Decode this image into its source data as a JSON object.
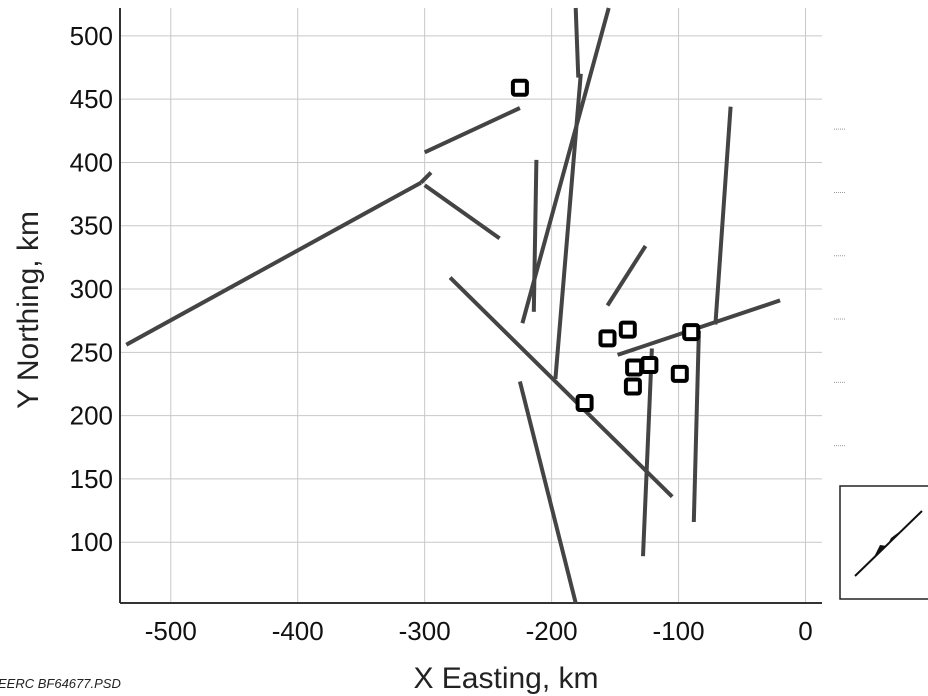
{
  "chart_data": {
    "type": "line",
    "title": "",
    "xlabel": "X Easting, km",
    "ylabel": "Y Northing, km",
    "xlim": [
      -540,
      13
    ],
    "ylim": [
      52,
      522
    ],
    "x_ticks": [
      -500,
      -400,
      -300,
      -200,
      -100,
      0
    ],
    "y_ticks": [
      100,
      150,
      200,
      250,
      300,
      350,
      400,
      450,
      500
    ],
    "grid": true,
    "colors": {
      "lines": "#444444",
      "markers": "#000000",
      "grid": "#c8c8c8"
    },
    "series": [
      {
        "points": [
          [
            -535,
            256
          ],
          [
            -303,
            384
          ]
        ]
      },
      {
        "points": [
          [
            -303,
            384
          ],
          [
            -295,
            392
          ]
        ]
      },
      {
        "points": [
          [
            -300,
            382
          ],
          [
            -241,
            340
          ]
        ]
      },
      {
        "points": [
          [
            -300,
            408
          ],
          [
            -225,
            443
          ]
        ]
      },
      {
        "points": [
          [
            -181,
            522
          ],
          [
            -179,
            467
          ]
        ]
      },
      {
        "points": [
          [
            -177,
            470
          ],
          [
            -197,
            229
          ]
        ]
      },
      {
        "points": [
          [
            -155,
            522
          ],
          [
            -223,
            273
          ]
        ]
      },
      {
        "points": [
          [
            -212,
            402
          ],
          [
            -214,
            282
          ]
        ]
      },
      {
        "points": [
          [
            -280,
            309
          ],
          [
            -105,
            136
          ]
        ]
      },
      {
        "points": [
          [
            -225,
            227
          ],
          [
            -181,
            52
          ]
        ]
      },
      {
        "points": [
          [
            -156,
            287
          ],
          [
            -126,
            334
          ]
        ]
      },
      {
        "points": [
          [
            -148,
            248
          ],
          [
            -20,
            291
          ]
        ]
      },
      {
        "points": [
          [
            -121,
            253
          ],
          [
            -128,
            89
          ]
        ]
      },
      {
        "points": [
          [
            -59,
            444
          ],
          [
            -71,
            272
          ]
        ]
      },
      {
        "points": [
          [
            -84,
            267
          ],
          [
            -88,
            116
          ]
        ]
      }
    ],
    "markers": {
      "shape": "square",
      "points": [
        [
          -225,
          459
        ],
        [
          -156,
          261
        ],
        [
          -140,
          268
        ],
        [
          -135,
          238
        ],
        [
          -123,
          240
        ],
        [
          -136,
          223
        ],
        [
          -174,
          210
        ],
        [
          -99,
          233
        ],
        [
          -90,
          266
        ]
      ]
    },
    "credit": "EERC BF64677.PSD"
  }
}
